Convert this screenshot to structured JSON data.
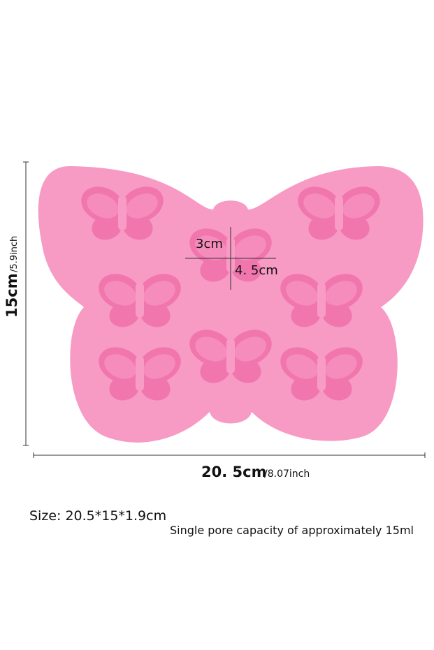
{
  "dimensions": {
    "height": "15cm",
    "height_inch": "/5.9inch",
    "width": "20. 5cm",
    "width_inch": "/8.07inch",
    "cavity_width": "3cm",
    "cavity_height": "4. 5cm"
  },
  "size": "Size: 20.5*15*1.9cm",
  "capacity": "Single pore capacity of approximately 15ml"
}
